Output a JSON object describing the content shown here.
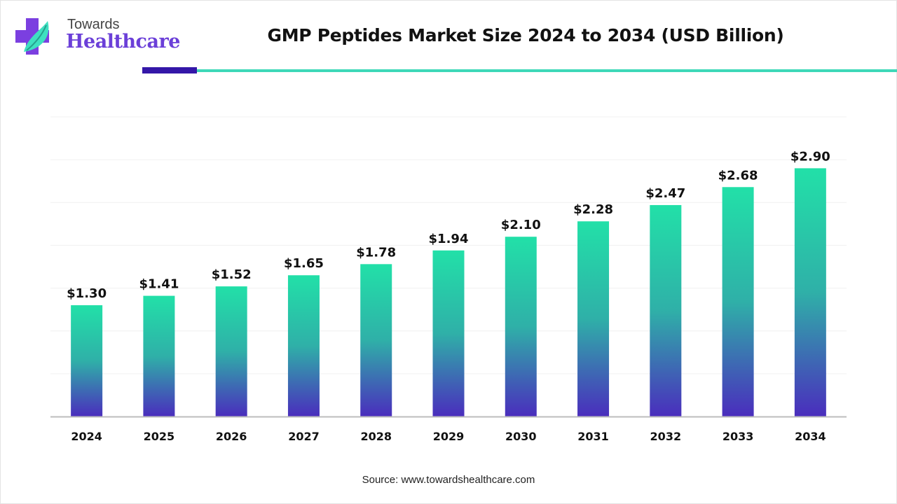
{
  "logo": {
    "line1": "Towards",
    "line2": "Healthcare"
  },
  "title": "GMP Peptides Market Size 2024 to 2034 (USD Billion)",
  "source": "Source: www.towardshealthcare.com",
  "colors": {
    "bar_top": "#22e0a8",
    "bar_bottom": "#4a2dbd",
    "accent_dark": "#3417a8",
    "accent_teal": "#3ed8b8"
  },
  "chart_data": {
    "type": "bar",
    "title": "GMP Peptides Market Size 2024 to 2034 (USD Billion)",
    "categories": [
      "2024",
      "2025",
      "2026",
      "2027",
      "2028",
      "2029",
      "2030",
      "2031",
      "2032",
      "2033",
      "2034"
    ],
    "values": [
      1.3,
      1.41,
      1.52,
      1.65,
      1.78,
      1.94,
      2.1,
      2.28,
      2.47,
      2.68,
      2.9
    ],
    "data_labels": [
      "$1.30",
      "$1.41",
      "$1.52",
      "$1.65",
      "$1.78",
      "$1.94",
      "$2.10",
      "$2.28",
      "$2.47",
      "$2.68",
      "$2.90"
    ],
    "xlabel": "",
    "ylabel": "",
    "ylim": [
      0,
      3.5
    ],
    "grid": true,
    "legend": "none"
  }
}
